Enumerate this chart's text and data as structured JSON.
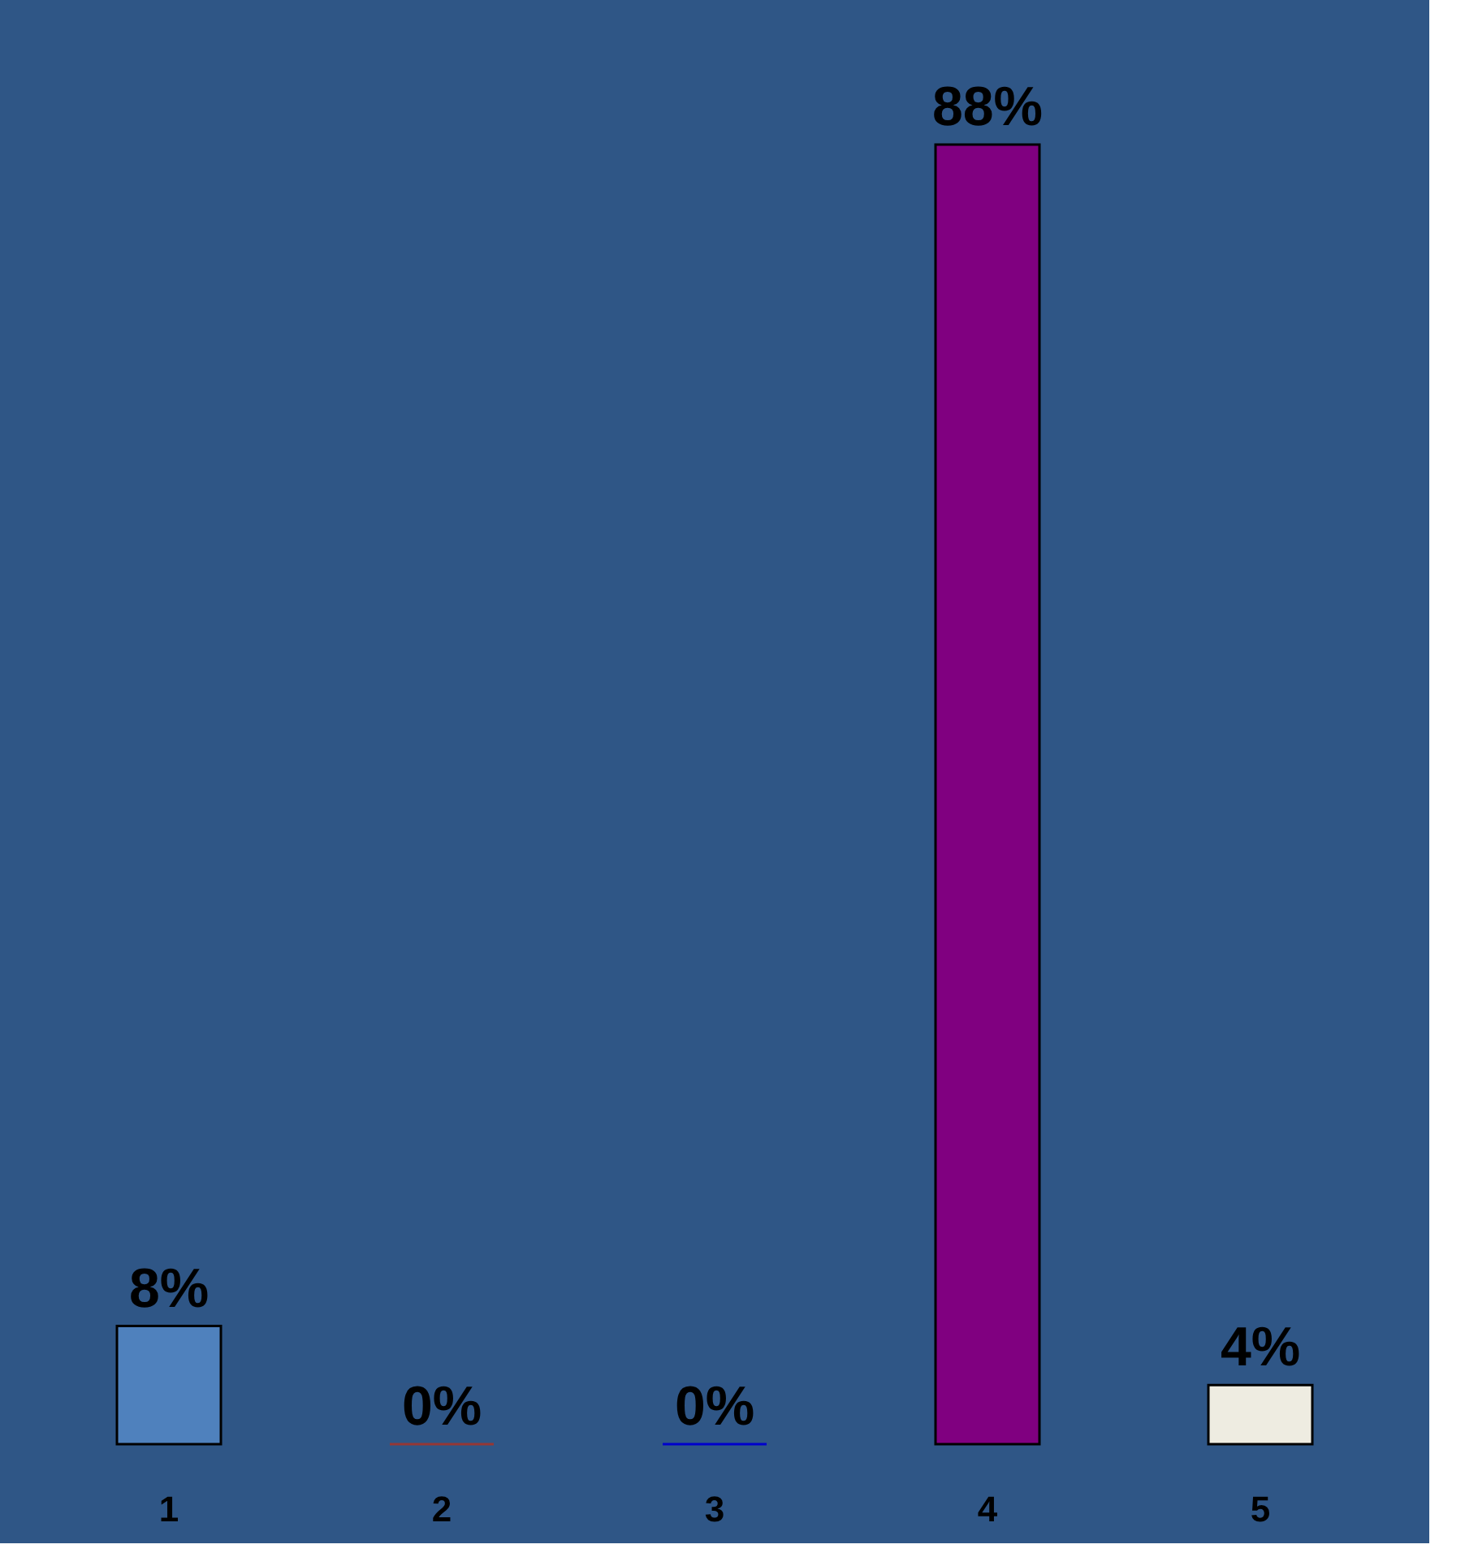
{
  "chart_data": {
    "type": "bar",
    "categories": [
      "1",
      "2",
      "3",
      "4",
      "5"
    ],
    "values": [
      8,
      0,
      0,
      88,
      4
    ],
    "colors": [
      "#4f81bd",
      "#953735",
      "#0000cc",
      "#800080",
      "#eeece1"
    ],
    "value_labels": [
      "8%",
      "0%",
      "0%",
      "88%",
      "4%"
    ],
    "grid": false
  }
}
